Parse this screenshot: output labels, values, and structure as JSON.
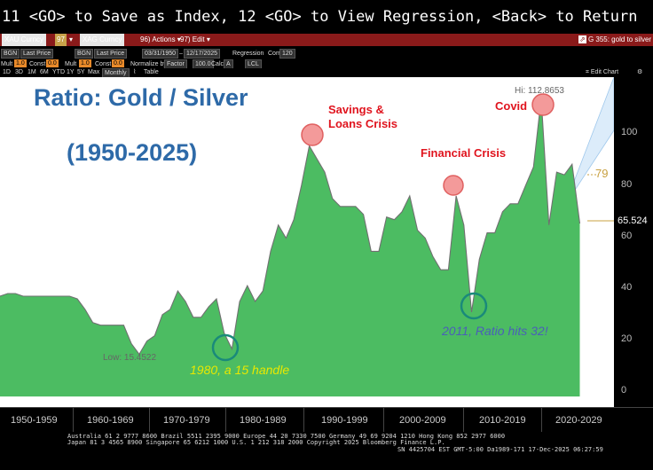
{
  "command_line": "11 <GO> to Save as Index, 12 <GO> to View Regression, <Back> to Return",
  "toolbar": {
    "security1": "XAU Curncy",
    "security2": "XAG Curncy",
    "page_num": "97",
    "actions_label": "Actions",
    "edit_label": "Edit",
    "page_title": "G 355: gold to silver"
  },
  "params": {
    "row1": {
      "src1": "BGN",
      "field1": "Last Price",
      "src2": "BGN",
      "field2": "Last Price",
      "start_date": "03/31/1950",
      "end_date": "12/17/2025",
      "regression_label": "Regression",
      "corr_label": "Corr",
      "corr_value": "120"
    },
    "row2": {
      "mult1_label": "Mult",
      "mult1": "1.0",
      "const1_label": "Const",
      "const1": "0.0",
      "mult2_label": "Mult",
      "mult2": "1.0",
      "const2_label": "Const",
      "const2": "0.0",
      "normalize_label": "Normalize by",
      "normalize_value": "Factor",
      "factor_value": "100.0",
      "calc_label": "Calc",
      "calc_value": "A",
      "currency_value": "LCL"
    },
    "periods": [
      "1D",
      "3D",
      "1M",
      "6M",
      "YTD",
      "1Y",
      "5Y",
      "Max"
    ],
    "frequency": "Monthly",
    "table_label": "Table",
    "edit_chart_label": "Edit Chart"
  },
  "chart": {
    "title_line1": "Ratio: Gold / Silver",
    "title_line2": "(1950-2025)",
    "annotations": {
      "savings_loans": [
        "Savings &",
        "Loans Crisis"
      ],
      "financial_crisis": "Financial Crisis",
      "covid": "Covid",
      "handle_1980": "1980, a 15 handle",
      "ratio_2011": "2011, Ratio hits 32!",
      "hi_label": "Hi: 112.8653",
      "low_label": "Low: 15.4522",
      "current_value": "65.524",
      "level_79": "79"
    },
    "colors": {
      "area_fill": "#4cbc62",
      "line": "#707070",
      "title": "#2e6aa8",
      "red_circle": "#f08a8a",
      "teal_circle": "#1a8a7a"
    }
  },
  "chart_data": {
    "type": "area",
    "title": "Ratio: Gold / Silver",
    "subtitle": "(1950-2025)",
    "xlabel": "",
    "ylabel": "",
    "ylim": [
      -4,
      121
    ],
    "y_ticks": [
      "0",
      "20",
      "40",
      "60",
      "80",
      "100"
    ],
    "x_categories": [
      "1950-1959",
      "1960-1969",
      "1970-1979",
      "1980-1989",
      "1990-1999",
      "2000-2009",
      "2010-2019",
      "2020-2029"
    ],
    "series": [
      {
        "name": "Gold / Silver ratio",
        "x": [
          1950,
          1951,
          1952,
          1953,
          1954,
          1955,
          1956,
          1957,
          1958,
          1959,
          1960,
          1961,
          1962,
          1963,
          1964,
          1965,
          1966,
          1967,
          1968,
          1969,
          1970,
          1971,
          1972,
          1973,
          1974,
          1975,
          1976,
          1977,
          1978,
          1979,
          1980,
          1981,
          1982,
          1983,
          1984,
          1985,
          1986,
          1987,
          1988,
          1989,
          1990,
          1991,
          1992,
          1993,
          1994,
          1995,
          1996,
          1997,
          1998,
          1999,
          2000,
          2001,
          2002,
          2003,
          2004,
          2005,
          2006,
          2007,
          2008,
          2009,
          2010,
          2011,
          2012,
          2013,
          2014,
          2015,
          2016,
          2017,
          2018,
          2019,
          2020,
          2021,
          2022,
          2023,
          2024,
          2025
        ],
        "values": [
          38,
          39,
          39,
          38,
          38,
          38,
          38,
          38,
          38,
          38,
          37,
          33,
          28,
          27,
          27,
          27,
          27,
          20,
          16,
          21,
          23,
          31,
          33,
          40,
          36,
          30,
          30,
          34,
          37,
          24,
          18,
          36,
          42,
          36,
          40,
          55,
          65,
          60,
          67,
          80,
          95,
          90,
          85,
          75,
          72,
          72,
          72,
          69,
          55,
          55,
          68,
          67,
          70,
          76,
          63,
          60,
          53,
          48,
          48,
          76,
          65,
          32,
          52,
          62,
          62,
          70,
          73,
          73,
          80,
          87,
          113,
          65,
          85,
          84,
          88,
          65.524
        ]
      }
    ],
    "markers": [
      {
        "label": "Hi",
        "x": 2020.25,
        "y": 112.8653
      },
      {
        "label": "Low",
        "x": 1968.3,
        "y": 15.4522
      },
      {
        "label": "Current",
        "x": 2025.95,
        "y": 65.524
      }
    ],
    "legend": "none",
    "grid": false
  },
  "footer": {
    "line1": "Australia 61 2 9777 8600 Brazil 5511 2395 9000 Europe 44 20 7330 7500 Germany 49 69 9204 1210 Hong Kong 852 2977 6000",
    "line2": "Japan 81 3 4565 8900          Singapore 65 6212 1000       U.S. 1 212 318 2000           Copyright 2025 Bloomberg Finance L.P.",
    "line3": "SN 4425704 EST  GMT-5:00 Da1989-171 17-Dec-2025 06:27:59"
  }
}
